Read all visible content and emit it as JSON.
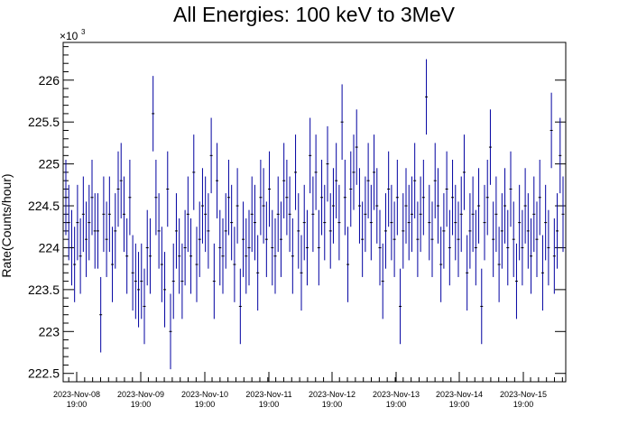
{
  "chart_data": {
    "type": "scatter",
    "title": "All Energies:  100 keV to 3MeV",
    "ylabel": "Rate(Counts/hour)",
    "xlabel": "",
    "y_multiplier": {
      "base": "×10",
      "exponent": "3"
    },
    "ylim": [
      222.4,
      226.45
    ],
    "y_ticks": [
      {
        "value": 222.5,
        "label": "222.5"
      },
      {
        "value": 223.0,
        "label": "223"
      },
      {
        "value": 223.5,
        "label": "223.5"
      },
      {
        "value": 224.0,
        "label": "224"
      },
      {
        "value": 224.5,
        "label": "224.5"
      },
      {
        "value": 225.0,
        "label": "225"
      },
      {
        "value": 225.5,
        "label": "225.5"
      },
      {
        "value": 226.0,
        "label": "226"
      }
    ],
    "x_ticks": [
      {
        "date": "2023-Nov-08",
        "time": "19:00"
      },
      {
        "date": "2023-Nov-09",
        "time": "19:00"
      },
      {
        "date": "2023-Nov-10",
        "time": "19:00"
      },
      {
        "date": "2023-Nov-11",
        "time": "19:00"
      },
      {
        "date": "2023-Nov-12",
        "time": "19:00"
      },
      {
        "date": "2023-Nov-13",
        "time": "19:00"
      },
      {
        "date": "2023-Nov-14",
        "time": "19:00"
      },
      {
        "date": "2023-Nov-15",
        "time": "19:00"
      }
    ],
    "x_range": [
      "2023-11-08 10:00",
      "2023-11-16 08:00"
    ],
    "series": [
      {
        "marker_color": "#000000",
        "error_color": "#0000a0",
        "points": [
          [
            0,
            224.6,
            0.45
          ],
          [
            1,
            224.3,
            0.45
          ],
          [
            2,
            224.0,
            0.45
          ],
          [
            3,
            223.8,
            0.45
          ],
          [
            4,
            224.3,
            0.45
          ],
          [
            5,
            223.9,
            0.45
          ],
          [
            6,
            224.4,
            0.45
          ],
          [
            7,
            224.1,
            0.45
          ],
          [
            8,
            224.3,
            0.45
          ],
          [
            9,
            224.6,
            0.45
          ],
          [
            10,
            224.2,
            0.45
          ],
          [
            11,
            224.2,
            0.45
          ],
          [
            12,
            223.2,
            0.45
          ],
          [
            13,
            224.4,
            0.45
          ],
          [
            14,
            224.1,
            0.45
          ],
          [
            15,
            224.4,
            0.45
          ],
          [
            16,
            223.8,
            0.45
          ],
          [
            17,
            224.2,
            0.45
          ],
          [
            18,
            224.7,
            0.45
          ],
          [
            19,
            224.8,
            0.45
          ],
          [
            20,
            224.4,
            0.45
          ],
          [
            21,
            223.9,
            0.45
          ],
          [
            22,
            224.6,
            0.45
          ],
          [
            23,
            223.7,
            0.45
          ],
          [
            24,
            223.6,
            0.45
          ],
          [
            25,
            223.5,
            0.45
          ],
          [
            26,
            223.6,
            0.45
          ],
          [
            27,
            223.3,
            0.45
          ],
          [
            28,
            224.0,
            0.45
          ],
          [
            29,
            223.9,
            0.45
          ],
          [
            30,
            225.6,
            0.45
          ],
          [
            31,
            224.6,
            0.45
          ],
          [
            32,
            224.2,
            0.45
          ],
          [
            33,
            223.8,
            0.45
          ],
          [
            34,
            223.5,
            0.45
          ],
          [
            35,
            224.7,
            0.45
          ],
          [
            36,
            223.0,
            0.45
          ],
          [
            37,
            223.6,
            0.45
          ],
          [
            38,
            224.2,
            0.45
          ],
          [
            39,
            223.9,
            0.45
          ],
          [
            40,
            223.6,
            0.45
          ],
          [
            41,
            224.0,
            0.45
          ],
          [
            42,
            224.4,
            0.45
          ],
          [
            43,
            223.9,
            0.45
          ],
          [
            44,
            224.9,
            0.45
          ],
          [
            45,
            223.8,
            0.45
          ],
          [
            46,
            224.1,
            0.45
          ],
          [
            47,
            224.5,
            0.45
          ],
          [
            48,
            224.4,
            0.45
          ],
          [
            49,
            224.2,
            0.45
          ],
          [
            50,
            225.1,
            0.45
          ],
          [
            51,
            223.6,
            0.45
          ],
          [
            52,
            224.8,
            0.45
          ],
          [
            53,
            224.0,
            0.45
          ],
          [
            54,
            223.9,
            0.45
          ],
          [
            55,
            224.2,
            0.45
          ],
          [
            56,
            224.6,
            0.45
          ],
          [
            57,
            224.3,
            0.45
          ],
          [
            58,
            223.8,
            0.45
          ],
          [
            59,
            224.5,
            0.45
          ],
          [
            60,
            223.3,
            0.45
          ],
          [
            61,
            224.1,
            0.45
          ],
          [
            62,
            223.9,
            0.45
          ],
          [
            63,
            224.0,
            0.45
          ],
          [
            64,
            224.4,
            0.45
          ],
          [
            65,
            224.3,
            0.45
          ],
          [
            66,
            223.7,
            0.45
          ],
          [
            67,
            224.6,
            0.45
          ],
          [
            68,
            224.5,
            0.45
          ],
          [
            69,
            224.1,
            0.45
          ],
          [
            70,
            224.7,
            0.45
          ],
          [
            71,
            224.0,
            0.45
          ],
          [
            72,
            223.9,
            0.45
          ],
          [
            73,
            224.4,
            0.45
          ],
          [
            74,
            224.1,
            0.45
          ],
          [
            75,
            224.8,
            0.45
          ],
          [
            76,
            224.6,
            0.45
          ],
          [
            77,
            224.4,
            0.45
          ],
          [
            78,
            223.9,
            0.45
          ],
          [
            79,
            224.9,
            0.45
          ],
          [
            80,
            224.2,
            0.45
          ],
          [
            81,
            223.7,
            0.45
          ],
          [
            82,
            224.3,
            0.45
          ],
          [
            83,
            224.0,
            0.45
          ],
          [
            84,
            225.1,
            0.45
          ],
          [
            85,
            224.4,
            0.45
          ],
          [
            86,
            224.9,
            0.45
          ],
          [
            87,
            224.0,
            0.45
          ],
          [
            88,
            224.6,
            0.45
          ],
          [
            89,
            224.3,
            0.45
          ],
          [
            90,
            225.0,
            0.45
          ],
          [
            91,
            224.2,
            0.45
          ],
          [
            92,
            224.5,
            0.45
          ],
          [
            93,
            224.8,
            0.45
          ],
          [
            94,
            224.3,
            0.45
          ],
          [
            95,
            225.5,
            0.45
          ],
          [
            96,
            224.6,
            0.45
          ],
          [
            97,
            223.8,
            0.45
          ],
          [
            98,
            224.7,
            0.45
          ],
          [
            99,
            224.9,
            0.45
          ],
          [
            100,
            225.2,
            0.45
          ],
          [
            101,
            224.5,
            0.45
          ],
          [
            102,
            224.1,
            0.45
          ],
          [
            103,
            224.4,
            0.45
          ],
          [
            104,
            224.8,
            0.45
          ],
          [
            105,
            224.3,
            0.45
          ],
          [
            106,
            224.9,
            0.45
          ],
          [
            107,
            224.5,
            0.45
          ],
          [
            108,
            224.0,
            0.45
          ],
          [
            109,
            223.6,
            0.45
          ],
          [
            110,
            224.2,
            0.45
          ],
          [
            111,
            224.7,
            0.45
          ],
          [
            112,
            224.3,
            0.45
          ],
          [
            113,
            224.1,
            0.45
          ],
          [
            114,
            224.6,
            0.45
          ],
          [
            115,
            223.3,
            0.45
          ],
          [
            116,
            224.2,
            0.45
          ],
          [
            117,
            224.5,
            0.45
          ],
          [
            118,
            224.3,
            0.45
          ],
          [
            119,
            224.4,
            0.45
          ],
          [
            120,
            224.8,
            0.45
          ],
          [
            121,
            224.1,
            0.45
          ],
          [
            122,
            224.4,
            0.45
          ],
          [
            123,
            224.6,
            0.45
          ],
          [
            124,
            225.8,
            0.45
          ],
          [
            125,
            224.3,
            0.45
          ],
          [
            126,
            224.1,
            0.45
          ],
          [
            127,
            224.8,
            0.45
          ],
          [
            128,
            224.5,
            0.45
          ],
          [
            129,
            223.8,
            0.45
          ],
          [
            130,
            224.2,
            0.45
          ],
          [
            131,
            224.7,
            0.45
          ],
          [
            132,
            224.0,
            0.45
          ],
          [
            133,
            224.6,
            0.45
          ],
          [
            134,
            224.3,
            0.45
          ],
          [
            135,
            224.1,
            0.45
          ],
          [
            136,
            224.4,
            0.45
          ],
          [
            137,
            224.9,
            0.45
          ],
          [
            138,
            223.7,
            0.45
          ],
          [
            139,
            224.2,
            0.45
          ],
          [
            140,
            224.4,
            0.45
          ],
          [
            141,
            224.0,
            0.45
          ],
          [
            142,
            224.5,
            0.45
          ],
          [
            143,
            223.3,
            0.45
          ],
          [
            144,
            224.3,
            0.45
          ],
          [
            145,
            224.6,
            0.45
          ],
          [
            146,
            225.2,
            0.45
          ],
          [
            147,
            224.1,
            0.45
          ],
          [
            148,
            224.4,
            0.45
          ],
          [
            149,
            223.8,
            0.45
          ],
          [
            150,
            224.2,
            0.45
          ],
          [
            151,
            224.5,
            0.45
          ],
          [
            152,
            224.0,
            0.45
          ],
          [
            153,
            224.7,
            0.45
          ],
          [
            154,
            224.1,
            0.45
          ],
          [
            155,
            223.6,
            0.45
          ],
          [
            156,
            224.3,
            0.45
          ],
          [
            157,
            224.0,
            0.45
          ],
          [
            158,
            224.5,
            0.45
          ],
          [
            159,
            224.2,
            0.45
          ],
          [
            160,
            223.9,
            0.45
          ],
          [
            161,
            224.4,
            0.45
          ],
          [
            162,
            224.1,
            0.45
          ],
          [
            163,
            224.6,
            0.45
          ],
          [
            164,
            223.7,
            0.45
          ],
          [
            165,
            224.3,
            0.45
          ],
          [
            166,
            224.0,
            0.45
          ],
          [
            167,
            225.4,
            0.45
          ],
          [
            168,
            223.9,
            0.45
          ],
          [
            169,
            224.2,
            0.45
          ],
          [
            170,
            225.1,
            0.45
          ],
          [
            171,
            224.4,
            0.45
          ]
        ]
      }
    ]
  }
}
